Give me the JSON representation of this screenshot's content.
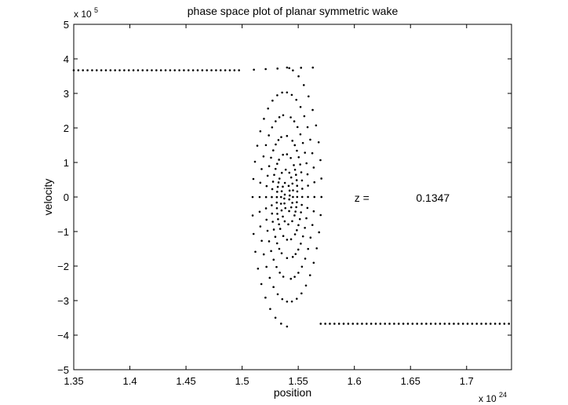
{
  "chart_data": {
    "type": "scatter",
    "title": "phase space plot of planar symmetric wake",
    "xlabel": "position",
    "ylabel": "velocity",
    "x_multiplier_label": "x 10",
    "x_multiplier_exponent": "24",
    "y_multiplier_label": "x 10",
    "y_multiplier_exponent": "5",
    "x_unit_scale": 1e+24,
    "y_unit_scale": 100000.0,
    "xlim": [
      1.35,
      1.74
    ],
    "ylim": [
      -5,
      5
    ],
    "x_ticks": [
      1.35,
      1.4,
      1.45,
      1.5,
      1.55,
      1.6,
      1.65,
      1.7
    ],
    "x_tick_labels": [
      "1.35",
      "1.4",
      "1.45",
      "1.5",
      "1.55",
      "1.6",
      "1.65",
      "1.7"
    ],
    "y_ticks": [
      -5,
      -4,
      -3,
      -2,
      -1,
      0,
      1,
      2,
      3,
      4,
      5
    ],
    "y_tick_labels": [
      "−5",
      "−4",
      "−3",
      "−2",
      "−1",
      "0",
      "1",
      "2",
      "3",
      "4",
      "5"
    ],
    "grid": false,
    "marker_color": "#000000",
    "annotation": {
      "label": "z =",
      "value": "0.1347",
      "label_x": 1.6,
      "value_x": 1.655,
      "y": 0
    },
    "spiral": {
      "center_x": 1.54,
      "center_y": 0.0,
      "outer_x": 1.5735,
      "outer_y": 3.67,
      "outer_x_max": 1.574,
      "outer_y_max": 3.75,
      "turns_angle": 25.13,
      "left_x_start": 1.35,
      "left_x_end": 1.5,
      "right_x_start": 1.57,
      "right_x_end": 1.74,
      "flat_step": 0.00409,
      "spiral_points": 160
    }
  }
}
